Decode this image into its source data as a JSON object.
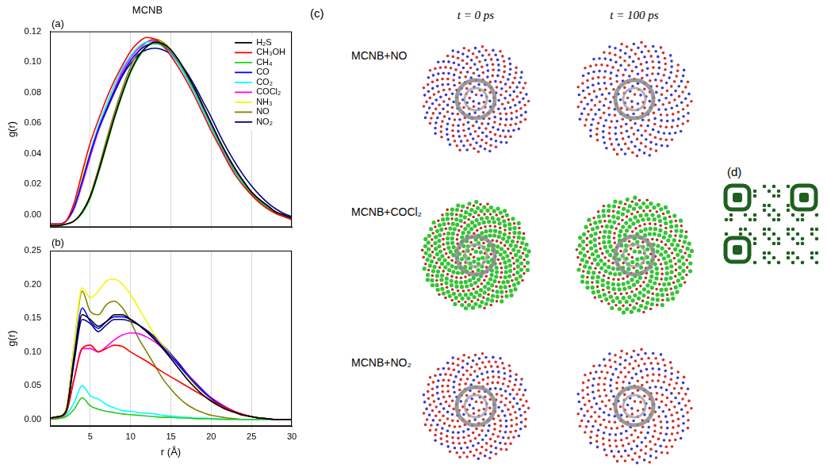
{
  "chart_data": [
    {
      "type": "line",
      "title": "MCNB",
      "annotations": [
        "(a)"
      ],
      "ylabel": "g(r)",
      "tick_labels": "y",
      "grid": true,
      "legend": "upper right",
      "xlim": [
        0,
        30
      ],
      "xticks": [
        5,
        10,
        15,
        20,
        25,
        30
      ],
      "ylim": [
        -0.008,
        0.12
      ],
      "yticks": [
        {
          "value": 0,
          "label": "0.00"
        },
        0.02,
        0.04,
        0.06,
        0.08,
        {
          "value": 0.1,
          "label": "0.10"
        },
        0.12
      ],
      "x": [
        0,
        1,
        2,
        3,
        4,
        5,
        6,
        7,
        8,
        9,
        10,
        11,
        12,
        13,
        14,
        15,
        16,
        17,
        18,
        19,
        20,
        21,
        22,
        23,
        24,
        25,
        26,
        27,
        28,
        29,
        30
      ],
      "series": [
        {
          "name": "H₂S",
          "color": "#000000",
          "values": [
            -0.007,
            -0.007,
            -0.006,
            -0.004,
            0.002,
            0.012,
            0.028,
            0.046,
            0.064,
            0.08,
            0.094,
            0.104,
            0.11,
            0.113,
            0.112,
            0.108,
            0.101,
            0.092,
            0.082,
            0.071,
            0.06,
            0.049,
            0.039,
            0.03,
            0.022,
            0.015,
            0.01,
            0.006,
            0.002,
            0.0,
            -0.002
          ]
        },
        {
          "name": "CH₃OH",
          "color": "#ff0000",
          "values": [
            -0.006,
            -0.006,
            -0.004,
            0.008,
            0.028,
            0.047,
            0.062,
            0.076,
            0.088,
            0.098,
            0.107,
            0.113,
            0.116,
            0.115,
            0.111,
            0.104,
            0.096,
            0.087,
            0.077,
            0.066,
            0.055,
            0.045,
            0.035,
            0.026,
            0.019,
            0.013,
            0.008,
            0.004,
            0.001,
            -0.001,
            -0.003
          ]
        },
        {
          "name": "CH₄",
          "color": "#22cc22",
          "values": [
            -0.007,
            -0.007,
            -0.006,
            -0.004,
            0.001,
            0.011,
            0.027,
            0.045,
            0.063,
            0.079,
            0.093,
            0.103,
            0.11,
            0.112,
            0.111,
            0.107,
            0.1,
            0.091,
            0.081,
            0.07,
            0.059,
            0.048,
            0.038,
            0.029,
            0.021,
            0.014,
            0.009,
            0.005,
            0.001,
            -0.001,
            -0.003
          ]
        },
        {
          "name": "CO",
          "color": "#0000ff",
          "values": [
            -0.006,
            -0.006,
            -0.004,
            0.005,
            0.022,
            0.04,
            0.056,
            0.069,
            0.081,
            0.092,
            0.101,
            0.107,
            0.111,
            0.112,
            0.111,
            0.107,
            0.1,
            0.092,
            0.082,
            0.071,
            0.06,
            0.049,
            0.039,
            0.03,
            0.022,
            0.015,
            0.01,
            0.006,
            0.002,
            0.0,
            -0.002
          ]
        },
        {
          "name": "CO₂",
          "color": "#00ffff",
          "values": [
            -0.006,
            -0.006,
            -0.004,
            0.005,
            0.022,
            0.041,
            0.058,
            0.072,
            0.085,
            0.096,
            0.104,
            0.11,
            0.113,
            0.113,
            0.11,
            0.105,
            0.098,
            0.089,
            0.079,
            0.068,
            0.057,
            0.046,
            0.036,
            0.027,
            0.02,
            0.014,
            0.009,
            0.005,
            0.002,
            0.0,
            -0.002
          ]
        },
        {
          "name": "COCl₂",
          "color": "#ff00ff",
          "values": [
            -0.006,
            -0.006,
            -0.004,
            0.004,
            0.02,
            0.038,
            0.055,
            0.069,
            0.082,
            0.094,
            0.103,
            0.109,
            0.113,
            0.114,
            0.111,
            0.106,
            0.099,
            0.09,
            0.08,
            0.069,
            0.058,
            0.047,
            0.037,
            0.028,
            0.02,
            0.014,
            0.009,
            0.005,
            0.002,
            0.0,
            -0.002
          ]
        },
        {
          "name": "NH₃",
          "color": "#f5f500",
          "values": [
            -0.006,
            -0.006,
            -0.004,
            0.007,
            0.025,
            0.042,
            0.057,
            0.07,
            0.083,
            0.095,
            0.104,
            0.11,
            0.113,
            0.114,
            0.112,
            0.107,
            0.099,
            0.09,
            0.08,
            0.069,
            0.058,
            0.047,
            0.037,
            0.028,
            0.02,
            0.014,
            0.009,
            0.005,
            0.002,
            0.0,
            -0.002
          ]
        },
        {
          "name": "NO",
          "color": "#808000",
          "values": [
            -0.007,
            -0.007,
            -0.006,
            -0.004,
            0.002,
            0.013,
            0.03,
            0.049,
            0.067,
            0.083,
            0.097,
            0.107,
            0.113,
            0.115,
            0.113,
            0.108,
            0.1,
            0.091,
            0.081,
            0.07,
            0.059,
            0.048,
            0.038,
            0.029,
            0.021,
            0.014,
            0.009,
            0.005,
            0.001,
            -0.001,
            -0.003
          ]
        },
        {
          "name": "NO₂",
          "color": "#000080",
          "values": [
            -0.006,
            -0.006,
            -0.004,
            0.005,
            0.021,
            0.039,
            0.055,
            0.068,
            0.08,
            0.091,
            0.099,
            0.105,
            0.108,
            0.109,
            0.108,
            0.105,
            0.1,
            0.093,
            0.084,
            0.074,
            0.064,
            0.053,
            0.043,
            0.034,
            0.026,
            0.019,
            0.013,
            0.008,
            0.004,
            0.001,
            -0.001
          ]
        }
      ]
    },
    {
      "type": "line",
      "annotations": [
        "(b)"
      ],
      "xlabel": "r (Å)",
      "ylabel": "g(r)",
      "grid": true,
      "legend": false,
      "xlim": [
        0,
        30
      ],
      "xticks": [
        5,
        10,
        15,
        20,
        25,
        30
      ],
      "ylim": [
        -0.01,
        0.25
      ],
      "yticks": [
        {
          "value": 0,
          "label": "0.00"
        },
        0.05,
        {
          "value": 0.1,
          "label": "0.10"
        },
        0.15,
        {
          "value": 0.2,
          "label": "0.20"
        },
        0.25
      ],
      "x": [
        0,
        1,
        2,
        3,
        4,
        5,
        6,
        7,
        8,
        9,
        10,
        11,
        12,
        13,
        14,
        15,
        16,
        17,
        18,
        19,
        20,
        21,
        22,
        23,
        24,
        25,
        26,
        27,
        28,
        29,
        30
      ],
      "series": [
        {
          "name": "H₂S",
          "color": "#000000",
          "values": [
            0.002,
            0.004,
            0.012,
            0.09,
            0.155,
            0.148,
            0.138,
            0.145,
            0.155,
            0.155,
            0.148,
            0.14,
            0.13,
            0.118,
            0.105,
            0.09,
            0.075,
            0.06,
            0.047,
            0.036,
            0.027,
            0.02,
            0.014,
            0.01,
            0.006,
            0.004,
            0.002,
            0.001,
            0,
            0,
            0
          ]
        },
        {
          "name": "CH₃OH",
          "color": "#ff0000",
          "values": [
            0.002,
            0.003,
            0.01,
            0.06,
            0.105,
            0.11,
            0.1,
            0.105,
            0.11,
            0.108,
            0.1,
            0.093,
            0.086,
            0.078,
            0.07,
            0.063,
            0.056,
            0.049,
            0.042,
            0.035,
            0.028,
            0.022,
            0.016,
            0.011,
            0.007,
            0.004,
            0.002,
            0.001,
            0,
            0,
            0
          ]
        },
        {
          "name": "CH₄",
          "color": "#22cc22",
          "values": [
            0,
            0.001,
            0.004,
            0.015,
            0.032,
            0.02,
            0.015,
            0.012,
            0.01,
            0.008,
            0.007,
            0.006,
            0.005,
            0.004,
            0.003,
            0.003,
            0.002,
            0.002,
            0.001,
            0.001,
            0.001,
            0,
            0,
            0,
            0,
            0,
            0,
            0,
            0,
            0,
            0
          ]
        },
        {
          "name": "CO",
          "color": "#0000ff",
          "values": [
            0.002,
            0.004,
            0.012,
            0.095,
            0.165,
            0.145,
            0.135,
            0.145,
            0.152,
            0.152,
            0.148,
            0.14,
            0.13,
            0.119,
            0.107,
            0.094,
            0.08,
            0.066,
            0.053,
            0.041,
            0.031,
            0.023,
            0.016,
            0.011,
            0.007,
            0.004,
            0.002,
            0.001,
            0,
            0,
            0
          ]
        },
        {
          "name": "CO₂",
          "color": "#00ffff",
          "values": [
            0.001,
            0.002,
            0.006,
            0.025,
            0.05,
            0.035,
            0.03,
            0.022,
            0.017,
            0.013,
            0.012,
            0.01,
            0.009,
            0.008,
            0.006,
            0.005,
            0.004,
            0.003,
            0.002,
            0.002,
            0.001,
            0.001,
            0,
            0,
            0,
            0,
            0,
            0,
            0,
            0,
            0
          ]
        },
        {
          "name": "COCl₂",
          "color": "#ff00ff",
          "values": [
            0.002,
            0.003,
            0.01,
            0.06,
            0.105,
            0.105,
            0.1,
            0.108,
            0.118,
            0.125,
            0.128,
            0.127,
            0.122,
            0.115,
            0.105,
            0.093,
            0.08,
            0.067,
            0.054,
            0.042,
            0.032,
            0.024,
            0.017,
            0.011,
            0.007,
            0.004,
            0.002,
            0.001,
            0,
            0,
            0
          ]
        },
        {
          "name": "NH₃",
          "color": "#f5f500",
          "values": [
            0.002,
            0.004,
            0.015,
            0.11,
            0.195,
            0.18,
            0.19,
            0.205,
            0.208,
            0.2,
            0.185,
            0.165,
            0.145,
            0.125,
            0.11,
            0.095,
            0.08,
            0.065,
            0.05,
            0.04,
            0.03,
            0.022,
            0.015,
            0.01,
            0.006,
            0.004,
            0.002,
            0.001,
            0,
            0,
            0
          ]
        },
        {
          "name": "NO",
          "color": "#808000",
          "values": [
            0.002,
            0.004,
            0.015,
            0.11,
            0.19,
            0.16,
            0.155,
            0.17,
            0.175,
            0.165,
            0.145,
            0.12,
            0.1,
            0.08,
            0.06,
            0.045,
            0.032,
            0.022,
            0.015,
            0.01,
            0.006,
            0.004,
            0.002,
            0.001,
            0,
            0,
            0,
            0,
            0,
            0,
            0
          ]
        },
        {
          "name": "NO₂",
          "color": "#000080",
          "values": [
            0.002,
            0.004,
            0.012,
            0.085,
            0.148,
            0.142,
            0.13,
            0.14,
            0.148,
            0.148,
            0.145,
            0.14,
            0.132,
            0.122,
            0.11,
            0.097,
            0.083,
            0.068,
            0.055,
            0.043,
            0.032,
            0.024,
            0.017,
            0.011,
            0.007,
            0.004,
            0.002,
            0.001,
            0,
            0,
            0
          ]
        }
      ]
    }
  ],
  "snapshots": {
    "label": "(c)",
    "columns": [
      "t = 0 ps",
      "t = 100 ps"
    ],
    "rows": [
      "MCNB+NO",
      "MCNB+COCl₂",
      "MCNB+NO₂"
    ]
  },
  "qr_code": {
    "label": "(d)"
  }
}
